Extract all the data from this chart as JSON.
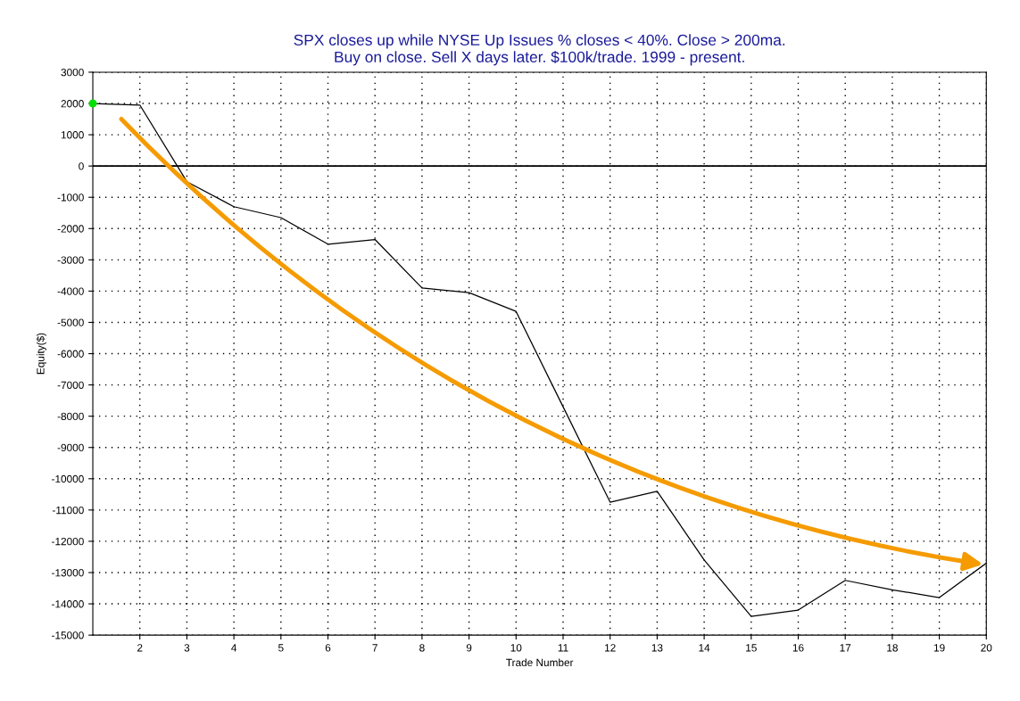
{
  "chart_data": {
    "type": "line",
    "title": "SPX closes up while NYSE Up Issues % closes < 40%. Close > 200ma.\nBuy on close. Sell X days later. $100k/trade. 1999 - present.",
    "xlabel": "Trade Number",
    "ylabel": "Equity($)",
    "x": [
      1,
      2,
      3,
      4,
      5,
      6,
      7,
      8,
      9,
      10,
      11,
      12,
      13,
      14,
      15,
      16,
      17,
      18,
      19,
      20
    ],
    "series": [
      {
        "color": "#000000",
        "values": [
          2000,
          1950,
          -500,
          -1300,
          -1650,
          -2500,
          -2350,
          -3900,
          -4050,
          -4650,
          -7700,
          -10750,
          -10400,
          -12600,
          -14400,
          -14200,
          -13250,
          -13550,
          -13800,
          -12700
        ]
      },
      {
        "type": "scatter",
        "color": "#00e000",
        "x": [
          1
        ],
        "values": [
          2000
        ]
      }
    ],
    "xlim": [
      1,
      20
    ],
    "xticks": [
      2,
      3,
      4,
      5,
      6,
      7,
      8,
      9,
      10,
      11,
      12,
      13,
      14,
      15,
      16,
      17,
      18,
      19,
      20
    ],
    "ylim": [
      -15000,
      3000
    ],
    "yticks": [
      -15000,
      -14000,
      -13000,
      -12000,
      -11000,
      -10000,
      -9000,
      -8000,
      -7000,
      -6000,
      -5000,
      -4000,
      -3000,
      -2000,
      -1000,
      0,
      1000,
      2000,
      3000
    ],
    "ref_lines": [
      {
        "axis": "y",
        "value": 0,
        "color": "#000000",
        "line_style": "solid"
      }
    ],
    "grid": true,
    "legend": false
  }
}
